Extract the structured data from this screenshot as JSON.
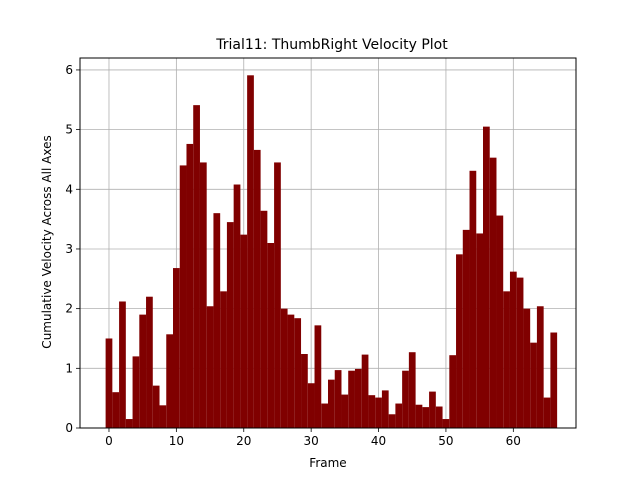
{
  "chart_data": {
    "type": "bar",
    "title": "Trial11: ThumbRight Velocity Plot",
    "xlabel": "Frame",
    "ylabel": "Cumulative Velocity Across All Axes",
    "xlim": [
      -4.3,
      69.3
    ],
    "ylim": [
      0,
      6.2
    ],
    "xticks": [
      0,
      10,
      20,
      30,
      40,
      50,
      60
    ],
    "yticks": [
      0,
      1,
      2,
      3,
      4,
      5,
      6
    ],
    "grid": true,
    "bar_color": "#800000",
    "bar_width": 1.0,
    "x": [
      0,
      1,
      2,
      3,
      4,
      5,
      6,
      7,
      8,
      9,
      10,
      11,
      12,
      13,
      14,
      15,
      16,
      17,
      18,
      19,
      20,
      21,
      22,
      23,
      24,
      25,
      26,
      27,
      28,
      29,
      30,
      31,
      32,
      33,
      34,
      35,
      36,
      37,
      38,
      39,
      40,
      41,
      42,
      43,
      44,
      45,
      46,
      47,
      48,
      49,
      50,
      51,
      52,
      53,
      54,
      55,
      56,
      57,
      58,
      59,
      60,
      61,
      62,
      63,
      64,
      65,
      66
    ],
    "values": [
      1.5,
      0.6,
      2.12,
      0.15,
      1.2,
      1.9,
      2.2,
      0.71,
      0.38,
      1.57,
      2.68,
      4.4,
      4.76,
      5.41,
      4.45,
      2.04,
      3.6,
      2.29,
      3.45,
      4.08,
      3.24,
      5.91,
      4.66,
      3.64,
      3.1,
      4.45,
      2.0,
      1.9,
      1.84,
      1.24,
      0.75,
      1.72,
      0.41,
      0.81,
      0.97,
      0.56,
      0.96,
      0.99,
      1.23,
      0.55,
      0.51,
      0.63,
      0.23,
      0.41,
      0.96,
      1.27,
      0.39,
      0.35,
      0.61,
      0.36,
      0.15,
      1.22,
      2.91,
      3.32,
      4.31,
      3.26,
      5.05,
      4.53,
      3.56,
      2.29,
      2.62,
      2.52,
      2.0,
      1.43,
      2.04,
      0.51,
      1.6
    ]
  }
}
